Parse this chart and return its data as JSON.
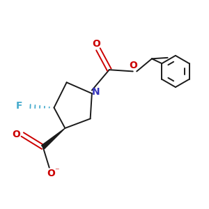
{
  "background_color": "#ffffff",
  "bond_color": "#1a1a1a",
  "nitrogen_color": "#3333bb",
  "oxygen_color": "#cc0000",
  "fluorine_color": "#44aacc",
  "fig_width": 3.0,
  "fig_height": 3.0,
  "dpi": 100,
  "xlim": [
    -2.5,
    4.0
  ],
  "ylim": [
    -2.5,
    2.5
  ]
}
